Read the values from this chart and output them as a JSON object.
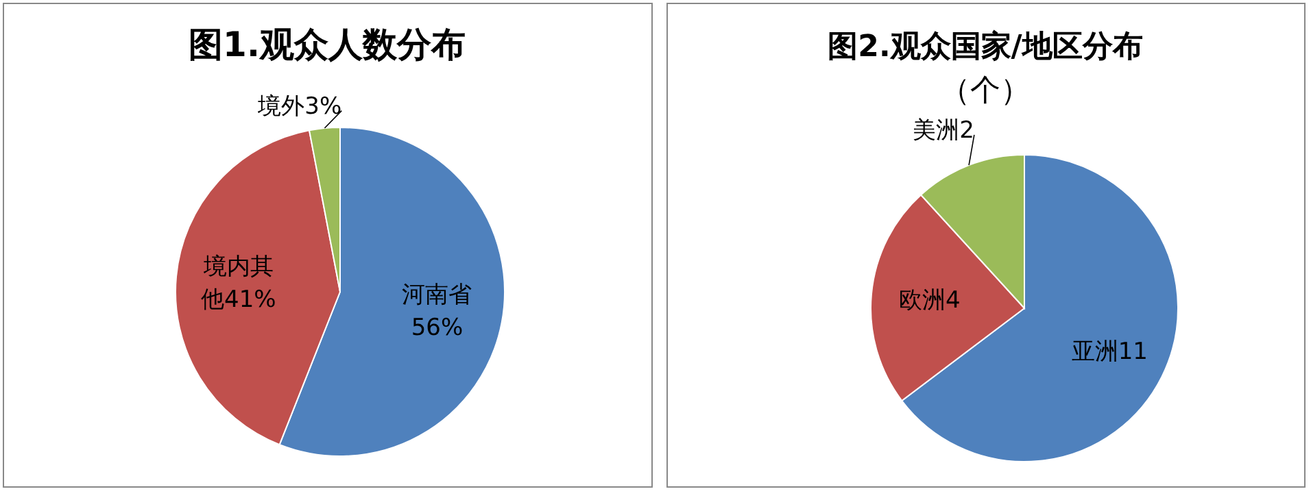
{
  "chart_data": [
    {
      "type": "pie",
      "title": "图1.观众人数分布",
      "categories": [
        "河南省",
        "境内其他",
        "境外"
      ],
      "values": [
        56,
        41,
        3
      ],
      "value_labels": [
        "56%",
        "41%",
        "3%"
      ],
      "colors": [
        "#4f81bd",
        "#c0504d",
        "#9bbb59"
      ]
    },
    {
      "type": "pie",
      "title": "图2.观众国家/地区分布",
      "subtitle": "（个）",
      "categories": [
        "亚洲",
        "欧洲",
        "美洲"
      ],
      "values": [
        11,
        4,
        2
      ],
      "value_labels": [
        "11",
        "4",
        "2"
      ],
      "colors": [
        "#4f81bd",
        "#c0504d",
        "#9bbb59"
      ]
    }
  ]
}
